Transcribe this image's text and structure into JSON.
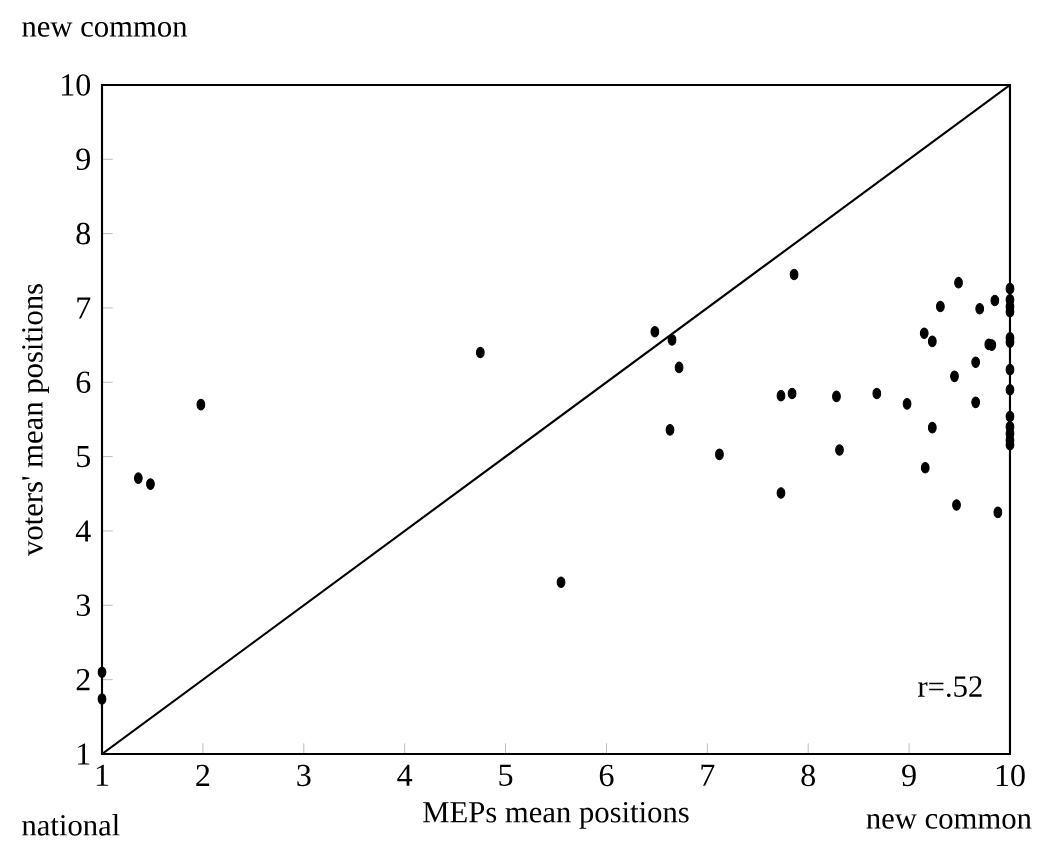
{
  "chart_data": {
    "type": "scatter",
    "xlabel": "MEPs mean positions",
    "ylabel": "voters' mean positions",
    "annotations": [
      "new common",
      "national",
      "new common",
      "r=.52"
    ],
    "xlim": [
      1,
      10
    ],
    "ylim": [
      1,
      10
    ],
    "xticks": [
      1,
      2,
      3,
      4,
      5,
      6,
      7,
      8,
      9,
      10
    ],
    "yticks": [
      1,
      2,
      3,
      4,
      5,
      6,
      7,
      8,
      9,
      10
    ],
    "series": [
      {
        "color": "#000000",
        "marker": "circle",
        "x": [
          1,
          1,
          1.36,
          1.48,
          1.98,
          4.75,
          5.55,
          6.48,
          6.65,
          6.72,
          6.63,
          7.12,
          7.73,
          7.73,
          7.84,
          7.86,
          8.28,
          8.31,
          8.68,
          8.98,
          9.15,
          9.23,
          9.23,
          9.16,
          9.31,
          9.49,
          9.45,
          9.47,
          9.66,
          9.66,
          9.7,
          9.79,
          9.82,
          9.85,
          9.88,
          10,
          10,
          10,
          10,
          10,
          10,
          10,
          10,
          10,
          10,
          10,
          10,
          10
        ],
        "values": [
          2.1,
          1.74,
          4.71,
          4.63,
          5.7,
          6.4,
          3.31,
          6.68,
          6.57,
          6.2,
          5.36,
          5.03,
          4.51,
          5.82,
          5.85,
          7.45,
          5.81,
          5.09,
          5.85,
          5.71,
          6.66,
          6.55,
          5.39,
          4.85,
          7.02,
          7.34,
          6.08,
          4.35,
          6.27,
          5.73,
          6.99,
          6.51,
          6.5,
          7.1,
          4.25,
          7.26,
          7.11,
          7.02,
          6.95,
          6.6,
          6.54,
          6.17,
          5.9,
          5.54,
          5.4,
          5.31,
          5.22,
          5.16
        ]
      },
      {
        "type": "line",
        "color": "#000000",
        "marker": "none",
        "line_style": "solid",
        "x": [
          1,
          10
        ],
        "values": [
          1,
          10
        ]
      }
    ]
  }
}
